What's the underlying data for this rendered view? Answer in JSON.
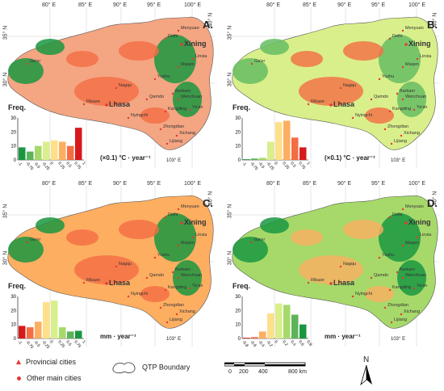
{
  "axis": {
    "lon_ticks": [
      "80° E",
      "85° E",
      "90° E",
      "95° E",
      "100° E"
    ],
    "lat_left": [
      "35° N",
      "30° N"
    ],
    "lat_right": "40° N",
    "lon_bottom": "103° E"
  },
  "cities": {
    "xining": "Xining",
    "delhi": "Delhi",
    "menyuan": "Menyuan",
    "linxia": "Linxia",
    "maqen": "Maqen",
    "gaer": "Ga'er",
    "nagqu": "Nagqu",
    "yushu": "Yushu",
    "lhasa": "Lhasa",
    "rikaze": "Rikaze",
    "qamdo": "Qamdo",
    "barkam": "Barkam",
    "wenchuan": "Wenchuan",
    "yaan": "Ya'an",
    "kangding": "Kangding",
    "nyingchi": "Nyingchi",
    "zhongdian": "Zhongdian",
    "xichang": "Xichang",
    "lijiang": "Lijiang"
  },
  "panels": [
    {
      "label": "A.",
      "freq_label": "Freq.",
      "unit": "(×0.1) °C · year⁻¹",
      "yticks": [
        "30",
        "20",
        "10",
        "0"
      ],
      "xticks": [
        "-1",
        "-0.75",
        "-0.5",
        "-0.25",
        "0",
        "0.25",
        "0.5",
        "0.75",
        "1"
      ],
      "bars": [
        9,
        6,
        10,
        13,
        14,
        13,
        10,
        23
      ],
      "bar_colors": [
        "#1a9641",
        "#5db35a",
        "#a6d96a",
        "#d9ef8b",
        "#fee08b",
        "#fdae61",
        "#f46d43",
        "#d7191c"
      ],
      "map_base": "#f4a582",
      "map_blobs": "#f46d43",
      "map_greens": "#1a9641"
    },
    {
      "label": "B.",
      "freq_label": "Freq.",
      "unit": "(×0.1) °C · year⁻¹",
      "yticks": [
        "30",
        "20",
        "10",
        "0"
      ],
      "xticks": [
        "-1",
        "-0.75",
        "-0.5",
        "-0.25",
        "0",
        "0.25",
        "0.5",
        "0.75",
        "1"
      ],
      "bars": [
        0.5,
        1,
        1.5,
        13,
        27,
        28,
        16,
        9
      ],
      "bar_colors": [
        "#1a9641",
        "#5db35a",
        "#a6d96a",
        "#d9ef8b",
        "#fee08b",
        "#fdae61",
        "#f46d43",
        "#d7191c"
      ],
      "map_base": "#d9ef8b",
      "map_blobs": "#f46d43",
      "map_greens": "#66bd63"
    },
    {
      "label": "C.",
      "freq_label": "Freq.",
      "unit": "mm · year⁻¹",
      "yticks": [
        "30",
        "20",
        "10",
        "0"
      ],
      "xticks": [
        "-1",
        "-0.75",
        "-0.5",
        "-0.25",
        "0",
        "0.25",
        "0.5",
        "0.75",
        "1"
      ],
      "bars": [
        9,
        8,
        12,
        26,
        27,
        8,
        5,
        5.5
      ],
      "bar_colors": [
        "#d7191c",
        "#f46d43",
        "#fdae61",
        "#fee08b",
        "#d9ef8b",
        "#a6d96a",
        "#5db35a",
        "#1a9641"
      ],
      "map_base": "#fdae61",
      "map_blobs": "#f46d43",
      "map_greens": "#1a9641"
    },
    {
      "label": "D.",
      "freq_label": "Freq.",
      "unit": "mm · year⁻¹",
      "yticks": [
        "30",
        "20",
        "10",
        "0"
      ],
      "xticks": [
        "-0.8",
        "-0.6",
        "-0.4",
        "-0.2",
        "0",
        "0.2",
        "0.4",
        "0.6",
        "0.8"
      ],
      "bars": [
        0.5,
        1,
        5,
        18,
        25,
        24,
        17,
        10
      ],
      "bar_colors": [
        "#d7191c",
        "#f46d43",
        "#fdae61",
        "#fee08b",
        "#d9ef8b",
        "#a6d96a",
        "#5db35a",
        "#1a9641"
      ],
      "map_base": "#a6d96a",
      "map_blobs": "#fdae61",
      "map_greens": "#1a9641"
    }
  ],
  "legend": {
    "provincial": "Provincial cities",
    "other": "Other main cities",
    "boundary": "QTP Boundary",
    "scale_ticks": [
      "0",
      "200",
      "400",
      "800 km"
    ],
    "north": "N"
  }
}
